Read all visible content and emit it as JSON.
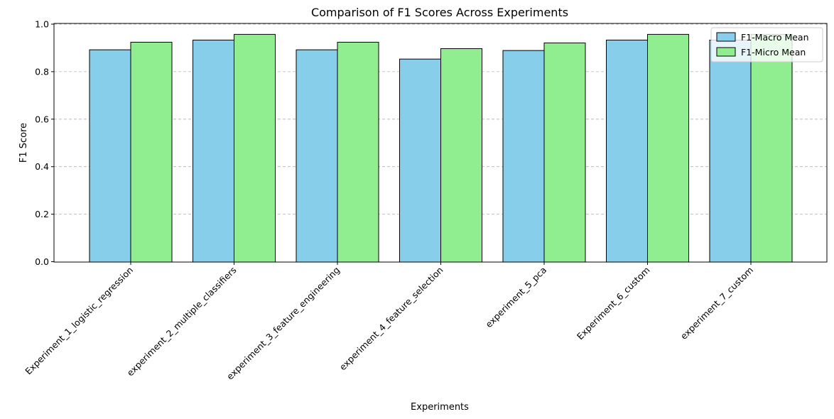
{
  "chart_data": {
    "type": "bar",
    "title": "Comparison of F1 Scores Across Experiments",
    "xlabel": "Experiments",
    "ylabel": "F1 Score",
    "categories": [
      "Experiment_1_logistic_regression",
      "experiment_2_multiple_classifiers",
      "experiment_3_feature_engineering",
      "experiment_4_feature_selection",
      "experiment_5_pca",
      "Experiment_6_custom",
      "experiment_7_custom"
    ],
    "series": [
      {
        "name": "F1-Macro Mean",
        "color": "#87ceeb",
        "values": [
          0.892,
          0.933,
          0.892,
          0.853,
          0.889,
          0.933,
          0.933
        ]
      },
      {
        "name": "F1-Micro Mean",
        "color": "#90ee90",
        "values": [
          0.924,
          0.957,
          0.924,
          0.897,
          0.921,
          0.957,
          0.957
        ]
      }
    ],
    "ylim": [
      0,
      1.0
    ],
    "yticks": [
      0.0,
      0.2,
      0.4,
      0.6,
      0.8,
      1.0
    ],
    "ytick_labels": [
      "0.0",
      "0.2",
      "0.4",
      "0.6",
      "0.8",
      "1.0"
    ],
    "grid": "y-dashed",
    "legend_position": "top-right",
    "edge_color": "#000000"
  }
}
